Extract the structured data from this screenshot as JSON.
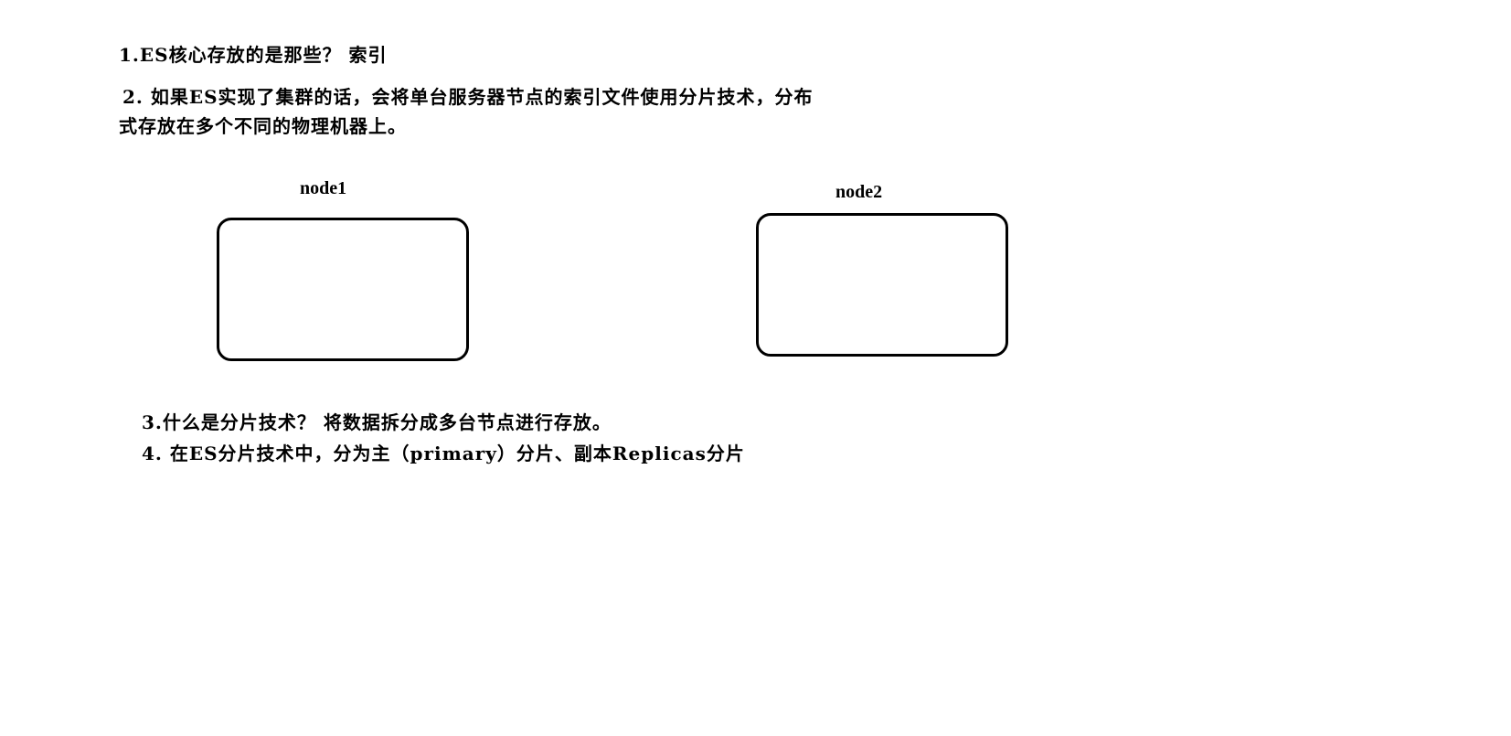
{
  "notes": {
    "line1": "1.ES核心存放的是那些？ 索引",
    "line2a": "2. 如果ES实现了集群的话，会将单台服务器节点的索引文件使用分片技术，分布",
    "line2b": "式存放在多个不同的物理机器上。",
    "line3": "3.什么是分片技术？ 将数据拆分成多台节点进行存放。",
    "line4": "4. 在ES分片技术中，分为主（primary）分片、副本Replicas分片"
  },
  "nodes": [
    {
      "label": "node1"
    },
    {
      "label": "node2"
    }
  ]
}
